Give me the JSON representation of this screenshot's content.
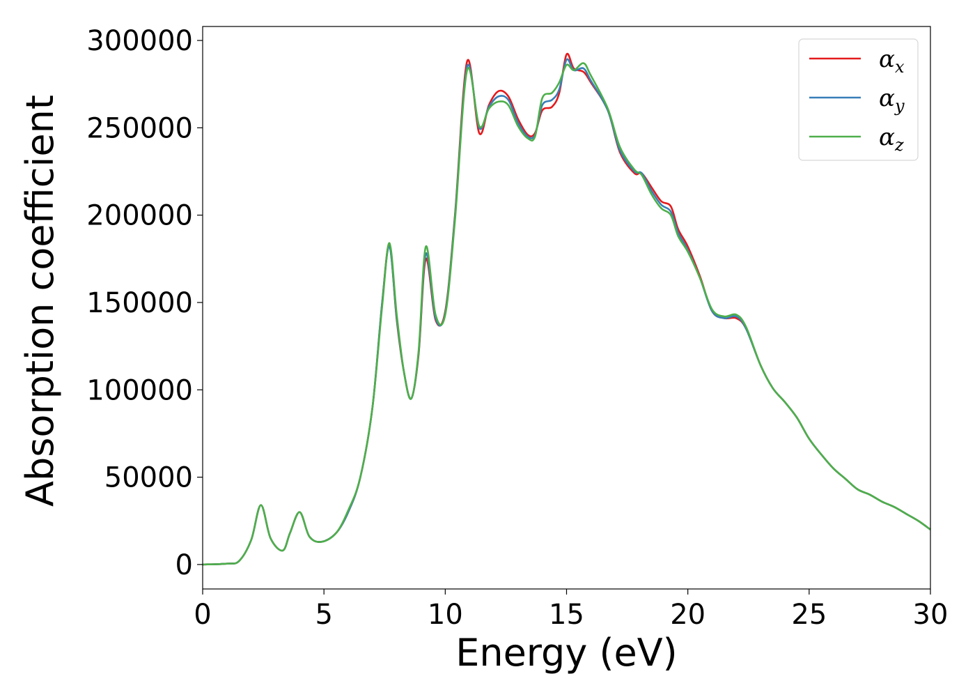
{
  "chart_data": {
    "type": "line",
    "title": "",
    "xlabel": "Energy (eV)",
    "ylabel": "Absorption coefficient",
    "xlim": [
      0,
      30
    ],
    "ylim": [
      -14000,
      308000
    ],
    "xticks": [
      0,
      5,
      10,
      15,
      20,
      25,
      30
    ],
    "yticks": [
      0,
      50000,
      100000,
      150000,
      200000,
      250000,
      300000
    ],
    "grid": false,
    "legend": {
      "placement": "top-right"
    },
    "x": [
      0,
      1,
      1.5,
      2,
      2.4,
      2.8,
      3.3,
      3.6,
      4.0,
      4.4,
      4.9,
      5.5,
      6.0,
      6.5,
      7.0,
      7.4,
      7.7,
      8.0,
      8.3,
      8.6,
      8.9,
      9.2,
      9.6,
      10.0,
      10.4,
      10.9,
      11.4,
      11.8,
      12.2,
      12.6,
      13.0,
      13.4,
      13.7,
      14.0,
      14.4,
      14.7,
      15.0,
      15.3,
      15.7,
      16.0,
      16.7,
      17.2,
      17.8,
      18.1,
      18.5,
      18.9,
      19.3,
      19.6,
      20.0,
      20.5,
      21.0,
      21.5,
      22.0,
      22.4,
      23.0,
      23.5,
      24.0,
      24.5,
      25.0,
      25.5,
      26.0,
      26.5,
      27.0,
      27.5,
      28.0,
      28.5,
      29.0,
      29.5,
      30.0
    ],
    "series": [
      {
        "name": "αx",
        "color": "#e41a1c",
        "values": [
          0,
          500,
          2000,
          14000,
          34000,
          15000,
          8000,
          18000,
          30000,
          16000,
          13000,
          18000,
          30000,
          50000,
          90000,
          150000,
          183000,
          140000,
          110000,
          95000,
          120000,
          175000,
          140000,
          145000,
          200000,
          288000,
          247000,
          263000,
          271000,
          268000,
          255000,
          246000,
          247000,
          260000,
          262000,
          270000,
          292000,
          284000,
          282000,
          276000,
          260000,
          236000,
          224000,
          224000,
          216000,
          208000,
          205000,
          192000,
          182000,
          165000,
          145000,
          141000,
          141000,
          135000,
          114000,
          101000,
          93000,
          84000,
          72000,
          63000,
          55000,
          49000,
          43000,
          40000,
          36000,
          33000,
          29000,
          25000,
          20000
        ]
      },
      {
        "name": "αy",
        "color": "#377eb8",
        "values": [
          0,
          500,
          2000,
          14000,
          34000,
          15000,
          8000,
          18000,
          30000,
          16000,
          13000,
          18000,
          30000,
          50000,
          90000,
          150000,
          182000,
          141000,
          110000,
          95000,
          121000,
          178000,
          141000,
          144000,
          199000,
          285000,
          250000,
          262000,
          268000,
          266000,
          253000,
          245000,
          246000,
          263000,
          266000,
          272000,
          289000,
          283000,
          284000,
          277000,
          260000,
          237000,
          225000,
          224000,
          214000,
          206000,
          202000,
          190000,
          180000,
          164000,
          145000,
          141000,
          142000,
          135000,
          114000,
          101000,
          93000,
          84000,
          72000,
          63000,
          55000,
          49000,
          43000,
          40000,
          36000,
          33000,
          29000,
          25000,
          20000
        ]
      },
      {
        "name": "αz",
        "color": "#4daf4a",
        "values": [
          0,
          500,
          2000,
          14000,
          34000,
          15000,
          8000,
          18000,
          30000,
          16000,
          13000,
          18000,
          31000,
          50000,
          90000,
          148000,
          184000,
          143000,
          110000,
          95000,
          122000,
          182000,
          143000,
          143000,
          197000,
          283000,
          251000,
          261000,
          265000,
          263000,
          251000,
          244000,
          245000,
          267000,
          270000,
          276000,
          286000,
          283000,
          287000,
          280000,
          261000,
          239000,
          226000,
          223000,
          212000,
          204000,
          200000,
          188000,
          179000,
          164000,
          146000,
          142000,
          143000,
          136000,
          114000,
          101000,
          93000,
          84000,
          72000,
          63000,
          55000,
          49000,
          43000,
          40000,
          36000,
          33000,
          29000,
          25000,
          20000
        ]
      }
    ]
  }
}
